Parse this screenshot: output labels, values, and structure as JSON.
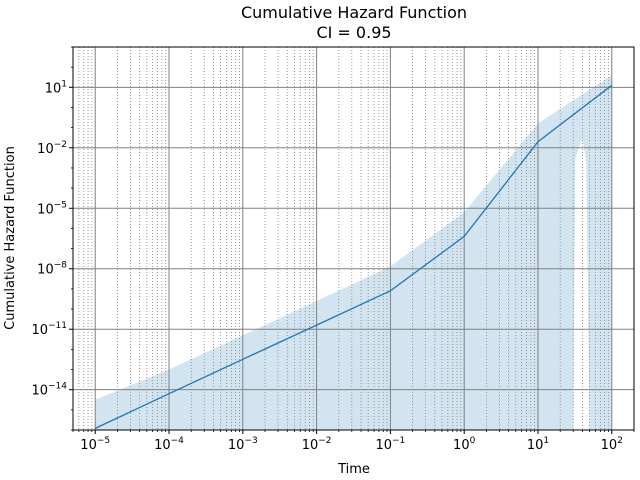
{
  "chart_data": {
    "type": "line",
    "title": "Cumulative Hazard Function",
    "subtitle": "CI = 0.95",
    "xlabel": "Time",
    "ylabel": "Cumulative Hazard Function",
    "x_scale": "log",
    "y_scale": "log",
    "xlim": [
      5e-06,
      200
    ],
    "ylim": [
      1e-16,
      1000
    ],
    "grid": true,
    "colors": {
      "line": "#1f77b4",
      "band": "#1f77b4",
      "grid_major": "#808080",
      "grid_minor": "#808080"
    },
    "x_ticks": [
      {
        "base": "10",
        "exp": "−5"
      },
      {
        "base": "10",
        "exp": "−4"
      },
      {
        "base": "10",
        "exp": "−3"
      },
      {
        "base": "10",
        "exp": "−2"
      },
      {
        "base": "10",
        "exp": "−1"
      },
      {
        "base": "10",
        "exp": "0"
      },
      {
        "base": "10",
        "exp": "1"
      },
      {
        "base": "10",
        "exp": "2"
      }
    ],
    "y_ticks": [
      {
        "base": "10",
        "exp": "−14"
      },
      {
        "base": "10",
        "exp": "−11"
      },
      {
        "base": "10",
        "exp": "−8"
      },
      {
        "base": "10",
        "exp": "−5"
      },
      {
        "base": "10",
        "exp": "−2"
      },
      {
        "base": "10",
        "exp": "1"
      }
    ],
    "series": [
      {
        "x": [
          1e-05,
          0.0001,
          0.001,
          0.01,
          0.1,
          1,
          10,
          100
        ],
        "y": [
          1.2e-16,
          6.3e-15,
          3.2e-13,
          1.6e-11,
          8e-10,
          4e-07,
          0.02,
          12.6
        ]
      }
    ],
    "band": {
      "upper": [
        [
          1e-05,
          3.2e-15
        ],
        [
          0.0001,
          1e-13
        ],
        [
          0.001,
          5e-12
        ],
        [
          0.01,
          2.5e-10
        ],
        [
          0.1,
          1.3e-08
        ],
        [
          1,
          6.3e-06
        ],
        [
          10,
          0.16
        ],
        [
          100,
          40
        ]
      ],
      "lower": [
        [
          100,
          1e-16
        ],
        [
          50,
          1e-16
        ],
        [
          45,
          0.002
        ],
        [
          40,
          0.03
        ],
        [
          32,
          0.003
        ],
        [
          30,
          1e-16
        ],
        [
          1e-05,
          1e-16
        ]
      ]
    }
  }
}
